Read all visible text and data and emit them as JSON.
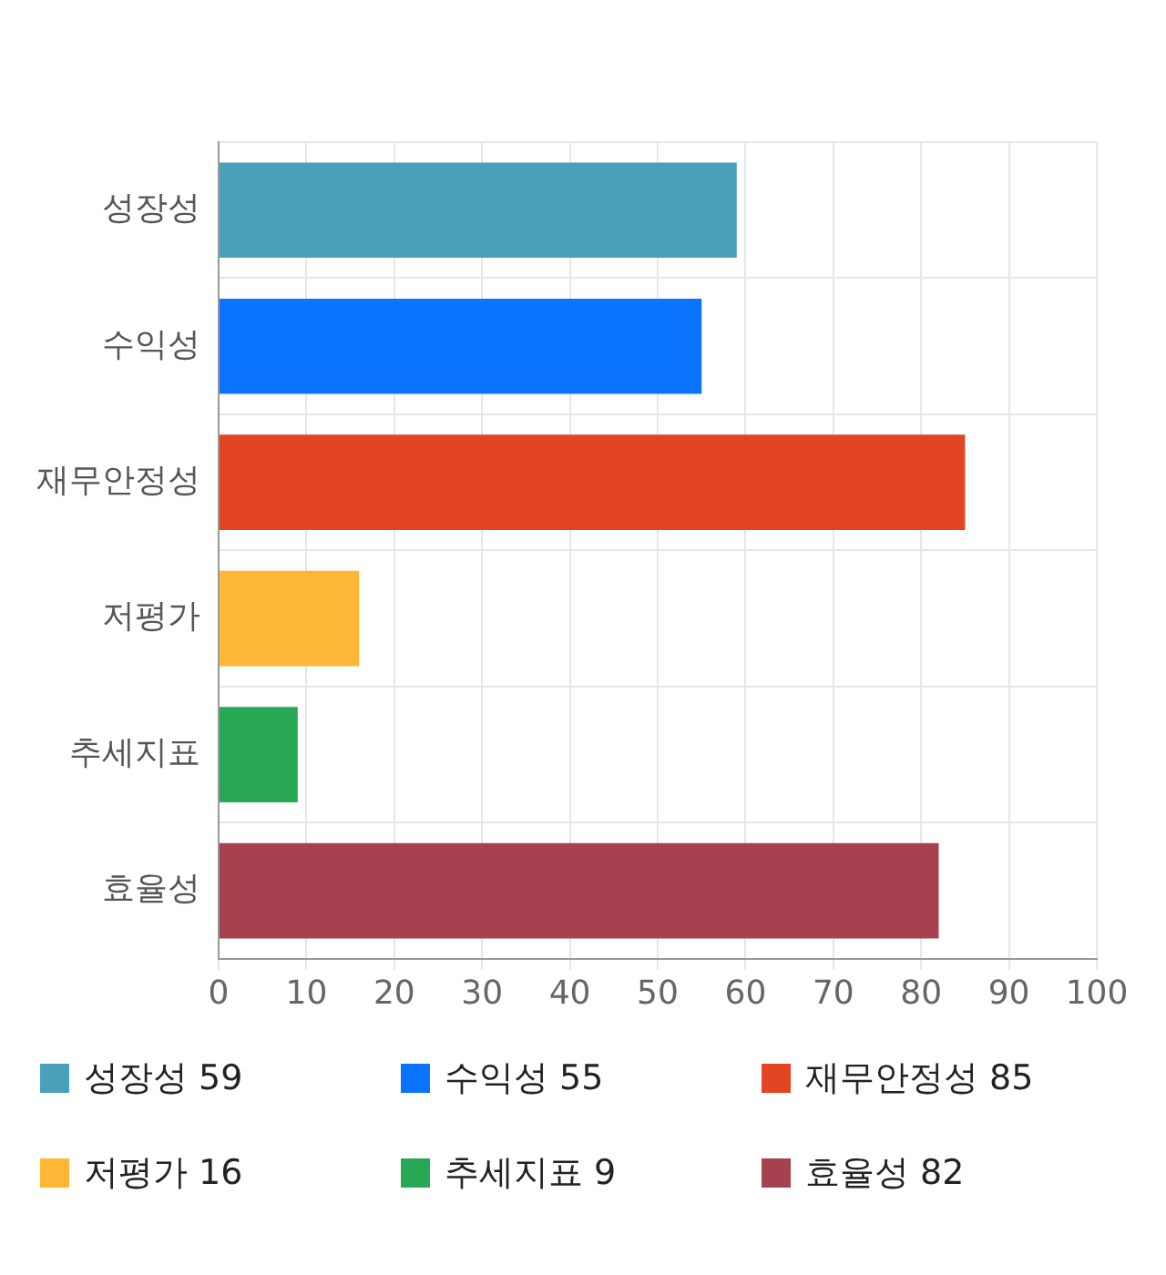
{
  "chart_data": {
    "type": "bar",
    "orientation": "horizontal",
    "categories": [
      "성장성",
      "수익성",
      "재무안정성",
      "저평가",
      "추세지표",
      "효율성"
    ],
    "values": [
      59,
      55,
      85,
      16,
      9,
      82
    ],
    "value_labels": [
      "59",
      "55",
      "85",
      "16",
      "9",
      "82"
    ],
    "colors": [
      "#4aa0b9",
      "#0a74ff",
      "#e24424",
      "#fdb734",
      "#28a854",
      "#a6414f"
    ],
    "xlim": [
      0,
      100
    ],
    "xticks": [
      0,
      10,
      20,
      30,
      40,
      50,
      60,
      70,
      80,
      90,
      100
    ],
    "grid": true
  }
}
